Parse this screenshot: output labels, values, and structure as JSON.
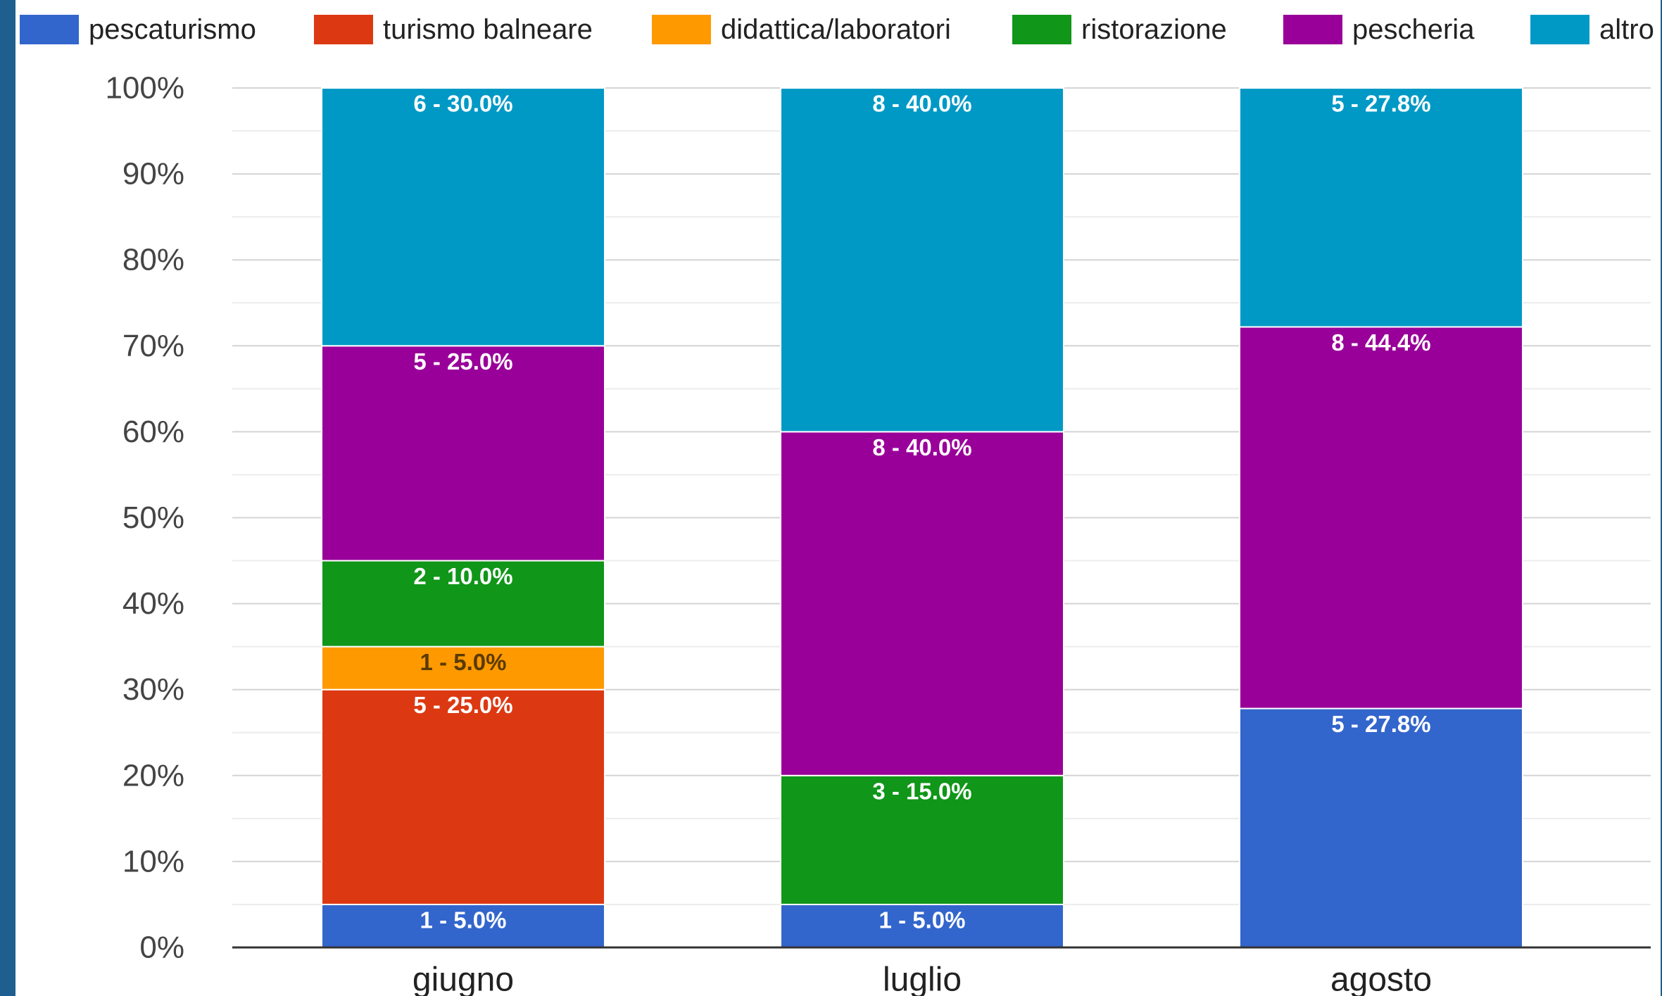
{
  "chart_data": {
    "type": "bar",
    "stacked": true,
    "categories": [
      "giugno",
      "luglio",
      "agosto"
    ],
    "ylim": [
      0,
      100
    ],
    "yticks": [
      "0%",
      "10%",
      "20%",
      "30%",
      "40%",
      "50%",
      "60%",
      "70%",
      "80%",
      "90%",
      "100%"
    ],
    "grid": true,
    "legend_position": "top",
    "series": [
      {
        "name": "pescaturismo",
        "color": "#3366cc",
        "values": [
          5.0,
          5.0,
          27.8
        ],
        "labels": [
          "1 - 5.0%",
          "1 - 5.0%",
          "5 - 27.8%"
        ],
        "label_color": "#ffffff"
      },
      {
        "name": "turismo balneare",
        "color": "#dc3912",
        "values": [
          25.0,
          0,
          0
        ],
        "labels": [
          "5 - 25.0%",
          "",
          ""
        ],
        "label_color": "#ffffff"
      },
      {
        "name": "didattica/laboratori",
        "color": "#ff9900",
        "values": [
          5.0,
          0,
          0
        ],
        "labels": [
          "1 - 5.0%",
          "",
          ""
        ],
        "label_color": "#5a3a00"
      },
      {
        "name": "ristorazione",
        "color": "#109618",
        "values": [
          10.0,
          15.0,
          0
        ],
        "labels": [
          "2 - 10.0%",
          "3 - 15.0%",
          ""
        ],
        "label_color": "#ffffff"
      },
      {
        "name": "pescheria",
        "color": "#990099",
        "values": [
          25.0,
          40.0,
          44.4
        ],
        "labels": [
          "5 - 25.0%",
          "8 - 40.0%",
          "8 - 44.4%"
        ],
        "label_color": "#ffffff"
      },
      {
        "name": "altro",
        "color": "#0099c6",
        "values": [
          30.0,
          40.0,
          27.8
        ],
        "labels": [
          "6 - 30.0%",
          "8 - 40.0%",
          "5 - 27.8%"
        ],
        "label_color": "#ffffff"
      }
    ]
  }
}
